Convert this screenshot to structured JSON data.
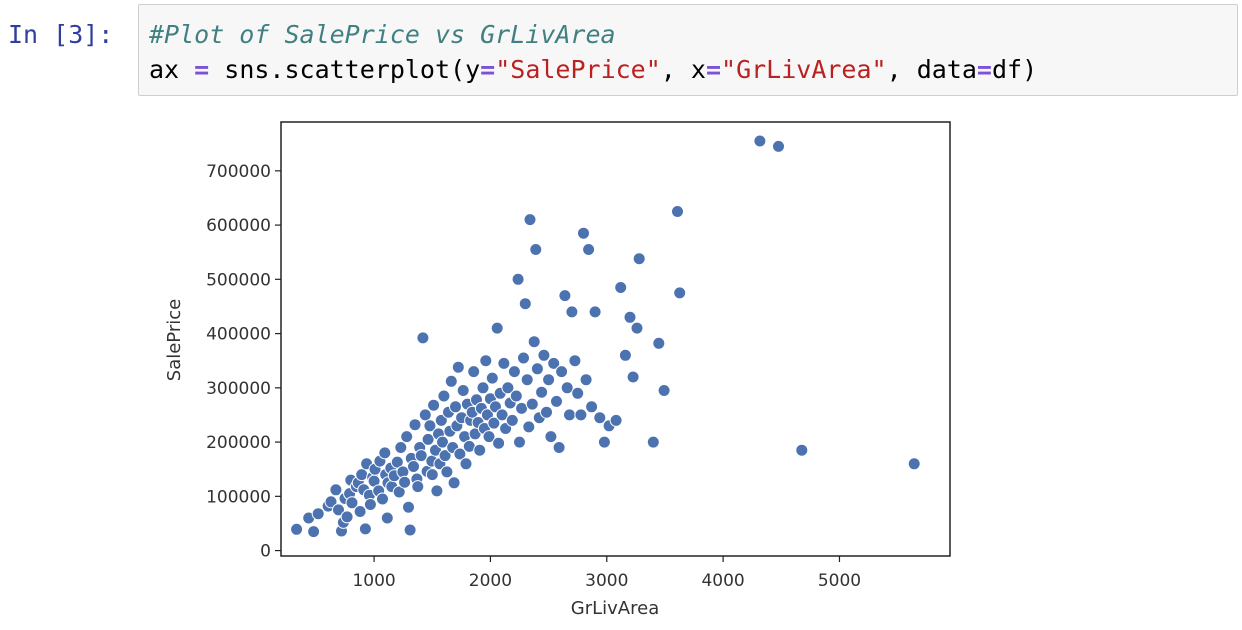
{
  "cell": {
    "prompt": "In [3]:",
    "code_line1_comment": "#Plot of SalePrice vs GrLivArea",
    "code_line2": {
      "p1": "ax ",
      "op1": "=",
      "p2": " sns.scatterplot(y",
      "op2": "=",
      "s1": "\"SalePrice\"",
      "p3": ", x",
      "op3": "=",
      "s2": "\"GrLivArea\"",
      "p4": ", data",
      "op4": "=",
      "p5": "df)"
    }
  },
  "colors": {
    "point": "#4c72b0",
    "prompt": "#303f9f",
    "comment": "#408080",
    "operator": "#7c52d8",
    "string": "#ba2121"
  },
  "chart_data": {
    "type": "scatter",
    "xlabel": "GrLivArea",
    "ylabel": "SalePrice",
    "xlim": [
      200,
      5950
    ],
    "ylim": [
      -10000,
      790000
    ],
    "xticks": [
      1000,
      2000,
      3000,
      4000,
      5000
    ],
    "yticks": [
      0,
      100000,
      200000,
      300000,
      400000,
      500000,
      600000,
      700000
    ],
    "grid": false,
    "points": [
      [
        334,
        39300
      ],
      [
        438,
        60000
      ],
      [
        480,
        35000
      ],
      [
        520,
        68000
      ],
      [
        605,
        82000
      ],
      [
        630,
        90000
      ],
      [
        672,
        112000
      ],
      [
        694,
        75000
      ],
      [
        720,
        36000
      ],
      [
        736,
        52000
      ],
      [
        750,
        96000
      ],
      [
        768,
        62000
      ],
      [
        790,
        105000
      ],
      [
        800,
        130000
      ],
      [
        810,
        88000
      ],
      [
        848,
        118000
      ],
      [
        864,
        125000
      ],
      [
        880,
        72000
      ],
      [
        894,
        140000
      ],
      [
        912,
        112000
      ],
      [
        925,
        40000
      ],
      [
        936,
        160000
      ],
      [
        960,
        102000
      ],
      [
        968,
        85000
      ],
      [
        988,
        135000
      ],
      [
        1000,
        128000
      ],
      [
        1008,
        150000
      ],
      [
        1040,
        110000
      ],
      [
        1050,
        165000
      ],
      [
        1072,
        95000
      ],
      [
        1092,
        180000
      ],
      [
        1100,
        140000
      ],
      [
        1114,
        60000
      ],
      [
        1120,
        125000
      ],
      [
        1144,
        152000
      ],
      [
        1152,
        118000
      ],
      [
        1174,
        138000
      ],
      [
        1200,
        163000
      ],
      [
        1216,
        108000
      ],
      [
        1230,
        190000
      ],
      [
        1248,
        145000
      ],
      [
        1262,
        126000
      ],
      [
        1280,
        210000
      ],
      [
        1296,
        80000
      ],
      [
        1310,
        38000
      ],
      [
        1320,
        170000
      ],
      [
        1339,
        155000
      ],
      [
        1352,
        232000
      ],
      [
        1368,
        132000
      ],
      [
        1376,
        118000
      ],
      [
        1392,
        190000
      ],
      [
        1405,
        175000
      ],
      [
        1420,
        392000
      ],
      [
        1440,
        250000
      ],
      [
        1456,
        146000
      ],
      [
        1464,
        205000
      ],
      [
        1480,
        230000
      ],
      [
        1496,
        165000
      ],
      [
        1500,
        140000
      ],
      [
        1512,
        268000
      ],
      [
        1528,
        185000
      ],
      [
        1540,
        110000
      ],
      [
        1554,
        215000
      ],
      [
        1566,
        160000
      ],
      [
        1578,
        240000
      ],
      [
        1588,
        200000
      ],
      [
        1600,
        285000
      ],
      [
        1610,
        175000
      ],
      [
        1626,
        145000
      ],
      [
        1640,
        255000
      ],
      [
        1652,
        220000
      ],
      [
        1664,
        312000
      ],
      [
        1676,
        190000
      ],
      [
        1688,
        125000
      ],
      [
        1700,
        265000
      ],
      [
        1712,
        230000
      ],
      [
        1724,
        338000
      ],
      [
        1738,
        178000
      ],
      [
        1752,
        245000
      ],
      [
        1766,
        295000
      ],
      [
        1778,
        210000
      ],
      [
        1790,
        160000
      ],
      [
        1802,
        270000
      ],
      [
        1818,
        192000
      ],
      [
        1830,
        240000
      ],
      [
        1844,
        255000
      ],
      [
        1856,
        330000
      ],
      [
        1868,
        215000
      ],
      [
        1880,
        278000
      ],
      [
        1894,
        236000
      ],
      [
        1908,
        185000
      ],
      [
        1922,
        262000
      ],
      [
        1936,
        300000
      ],
      [
        1948,
        225000
      ],
      [
        1960,
        350000
      ],
      [
        1974,
        250000
      ],
      [
        1988,
        210000
      ],
      [
        2000,
        280000
      ],
      [
        2016,
        318000
      ],
      [
        2030,
        235000
      ],
      [
        2044,
        265000
      ],
      [
        2058,
        410000
      ],
      [
        2070,
        198000
      ],
      [
        2084,
        290000
      ],
      [
        2100,
        250000
      ],
      [
        2116,
        345000
      ],
      [
        2130,
        225000
      ],
      [
        2150,
        300000
      ],
      [
        2170,
        272000
      ],
      [
        2188,
        240000
      ],
      [
        2206,
        330000
      ],
      [
        2222,
        285000
      ],
      [
        2238,
        500000
      ],
      [
        2250,
        200000
      ],
      [
        2268,
        262000
      ],
      [
        2284,
        355000
      ],
      [
        2300,
        455000
      ],
      [
        2316,
        315000
      ],
      [
        2330,
        228000
      ],
      [
        2340,
        610000
      ],
      [
        2360,
        270000
      ],
      [
        2376,
        385000
      ],
      [
        2390,
        555000
      ],
      [
        2404,
        335000
      ],
      [
        2420,
        245000
      ],
      [
        2440,
        292000
      ],
      [
        2460,
        360000
      ],
      [
        2482,
        255000
      ],
      [
        2500,
        315000
      ],
      [
        2520,
        210000
      ],
      [
        2544,
        345000
      ],
      [
        2568,
        275000
      ],
      [
        2590,
        190000
      ],
      [
        2612,
        330000
      ],
      [
        2640,
        470000
      ],
      [
        2660,
        300000
      ],
      [
        2680,
        250000
      ],
      [
        2700,
        440000
      ],
      [
        2726,
        350000
      ],
      [
        2750,
        290000
      ],
      [
        2778,
        250000
      ],
      [
        2800,
        585000
      ],
      [
        2822,
        315000
      ],
      [
        2844,
        555000
      ],
      [
        2870,
        265000
      ],
      [
        2900,
        440000
      ],
      [
        2940,
        245000
      ],
      [
        2980,
        200000
      ],
      [
        3020,
        230000
      ],
      [
        3080,
        240000
      ],
      [
        3120,
        485000
      ],
      [
        3160,
        360000
      ],
      [
        3200,
        430000
      ],
      [
        3226,
        320000
      ],
      [
        3260,
        410000
      ],
      [
        3279,
        538000
      ],
      [
        3400,
        200000
      ],
      [
        3447,
        382000
      ],
      [
        3493,
        295000
      ],
      [
        3608,
        625000
      ],
      [
        3627,
        475000
      ],
      [
        4316,
        755000
      ],
      [
        4476,
        745000
      ],
      [
        4676,
        185000
      ],
      [
        5642,
        160000
      ]
    ]
  }
}
